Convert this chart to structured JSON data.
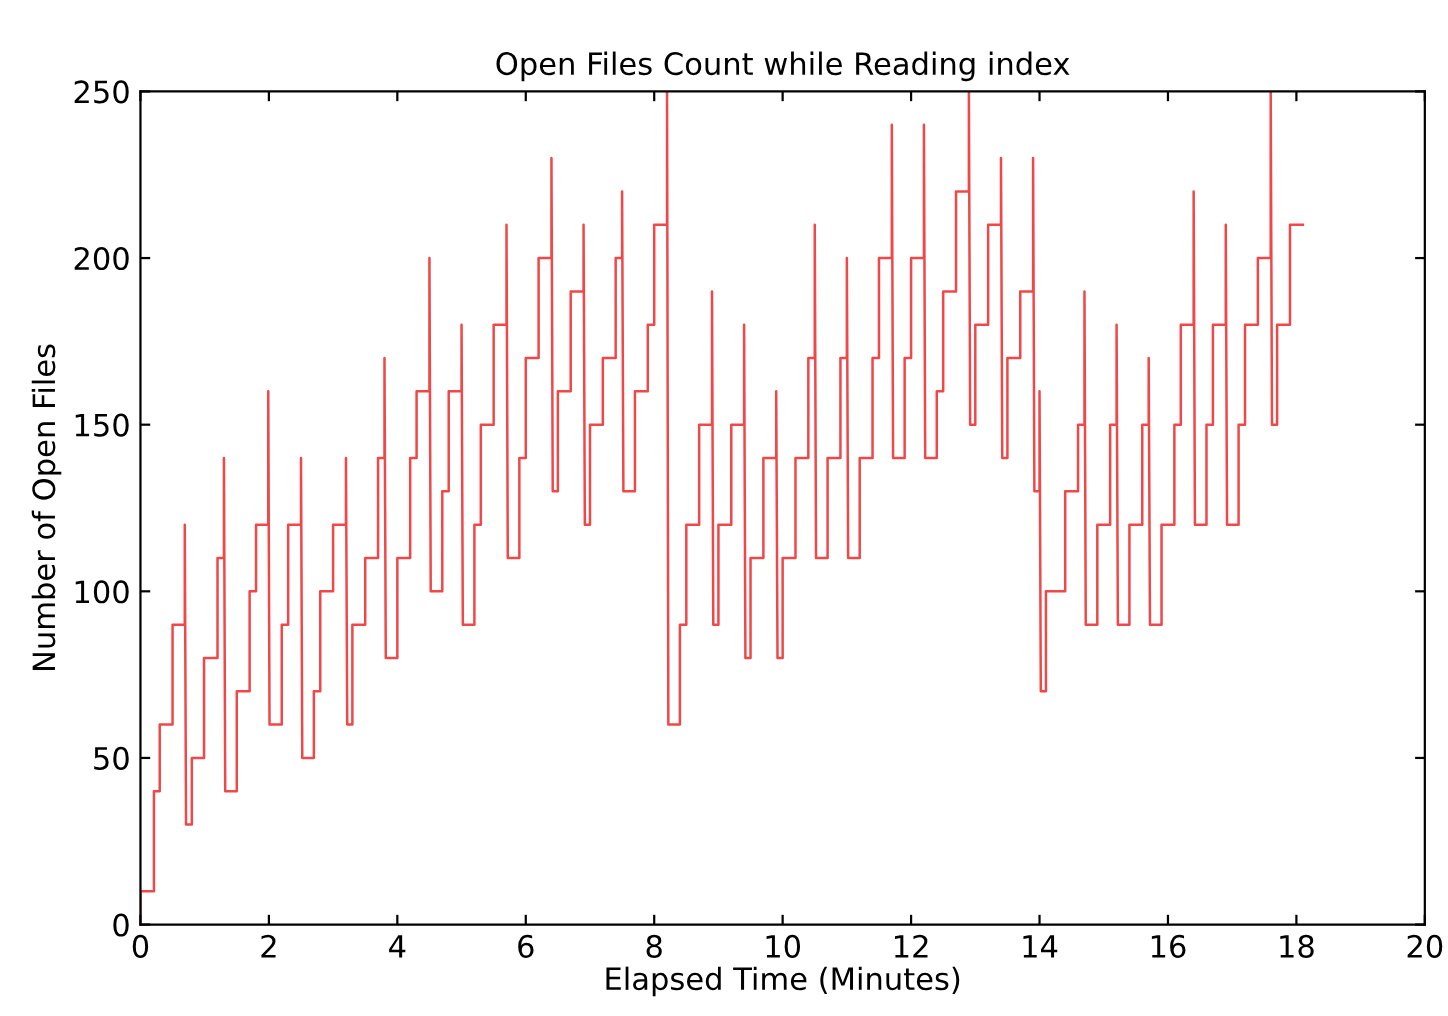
{
  "chart_data": {
    "type": "line",
    "title": "Open Files Count while Reading index",
    "xlabel": "Elapsed Time (Minutes)",
    "ylabel": "Number of Open Files",
    "xlim": [
      0,
      20
    ],
    "ylim": [
      0,
      250
    ],
    "xticks": [
      0,
      2,
      4,
      6,
      8,
      10,
      12,
      14,
      16,
      18,
      20
    ],
    "yticks": [
      0,
      50,
      100,
      150,
      200,
      250
    ],
    "x": [
      0,
      0,
      0.21,
      0.21,
      0.3,
      0.3,
      0.5,
      0.5,
      0.69,
      0.69,
      0.71,
      0.8,
      0.8,
      0.99,
      0.99,
      1.2,
      1.2,
      1.3,
      1.3,
      1.32,
      1.5,
      1.5,
      1.7,
      1.7,
      1.8,
      1.8,
      1.99,
      1.99,
      2.01,
      2.2,
      2.2,
      2.3,
      2.3,
      2.5,
      2.5,
      2.52,
      2.7,
      2.7,
      2.8,
      2.8,
      3.0,
      3.0,
      3.2,
      3.2,
      3.22,
      3.3,
      3.3,
      3.5,
      3.5,
      3.7,
      3.7,
      3.8,
      3.8,
      3.82,
      4.0,
      4.0,
      4.2,
      4.2,
      4.3,
      4.3,
      4.5,
      4.5,
      4.52,
      4.7,
      4.7,
      4.8,
      4.8,
      5.0,
      5.0,
      5.02,
      5.2,
      5.2,
      5.3,
      5.3,
      5.5,
      5.5,
      5.7,
      5.7,
      5.72,
      5.9,
      5.9,
      6.0,
      6.0,
      6.2,
      6.2,
      6.4,
      6.4,
      6.42,
      6.5,
      6.5,
      6.7,
      6.7,
      6.9,
      6.9,
      6.92,
      7.0,
      7.0,
      7.2,
      7.2,
      7.4,
      7.4,
      7.5,
      7.5,
      7.52,
      7.7,
      7.7,
      7.9,
      7.9,
      8.0,
      8.0,
      8.2,
      8.2,
      8.22,
      8.4,
      8.4,
      8.5,
      8.5,
      8.7,
      8.7,
      8.9,
      8.9,
      8.92,
      9.0,
      9.0,
      9.2,
      9.2,
      9.4,
      9.4,
      9.42,
      9.5,
      9.5,
      9.7,
      9.7,
      9.9,
      9.9,
      9.92,
      10.0,
      10.0,
      10.2,
      10.2,
      10.4,
      10.4,
      10.5,
      10.5,
      10.52,
      10.7,
      10.7,
      10.9,
      10.9,
      11.0,
      11.0,
      11.02,
      11.2,
      11.2,
      11.4,
      11.4,
      11.5,
      11.5,
      11.7,
      11.7,
      11.72,
      11.9,
      11.9,
      12.0,
      12.0,
      12.2,
      12.2,
      12.22,
      12.4,
      12.4,
      12.5,
      12.5,
      12.7,
      12.7,
      12.9,
      12.9,
      12.92,
      13.0,
      13.0,
      13.2,
      13.2,
      13.4,
      13.4,
      13.42,
      13.5,
      13.5,
      13.7,
      13.7,
      13.9,
      13.9,
      13.92,
      14.0,
      14.0,
      14.02,
      14.1,
      14.1,
      14.4,
      14.4,
      14.6,
      14.6,
      14.7,
      14.7,
      14.72,
      14.9,
      14.9,
      15.1,
      15.1,
      15.2,
      15.2,
      15.22,
      15.4,
      15.4,
      15.6,
      15.6,
      15.7,
      15.7,
      15.72,
      15.9,
      15.9,
      16.1,
      16.1,
      16.2,
      16.2,
      16.4,
      16.4,
      16.42,
      16.6,
      16.6,
      16.7,
      16.7,
      16.9,
      16.9,
      16.92,
      17.1,
      17.1,
      17.2,
      17.2,
      17.4,
      17.4,
      17.6,
      17.6,
      17.62,
      17.7,
      17.7,
      17.9,
      17.9,
      18.1
    ],
    "series": [
      {
        "color": "#f04848",
        "values": [
          0,
          10,
          10,
          40,
          40,
          60,
          60,
          90,
          90,
          120,
          30,
          30,
          50,
          50,
          80,
          80,
          110,
          110,
          140,
          40,
          40,
          70,
          70,
          100,
          100,
          120,
          120,
          160,
          60,
          60,
          90,
          90,
          120,
          120,
          140,
          50,
          50,
          70,
          70,
          100,
          100,
          120,
          120,
          140,
          60,
          60,
          90,
          90,
          110,
          110,
          140,
          140,
          170,
          80,
          80,
          110,
          110,
          140,
          140,
          160,
          160,
          200,
          100,
          100,
          130,
          130,
          160,
          160,
          180,
          90,
          90,
          120,
          120,
          150,
          150,
          180,
          180,
          210,
          110,
          110,
          140,
          140,
          170,
          170,
          200,
          200,
          230,
          130,
          130,
          160,
          160,
          190,
          190,
          210,
          120,
          120,
          150,
          150,
          170,
          170,
          200,
          200,
          220,
          130,
          130,
          160,
          160,
          180,
          180,
          210,
          210,
          250,
          60,
          60,
          90,
          90,
          120,
          120,
          150,
          150,
          190,
          90,
          90,
          120,
          120,
          150,
          150,
          180,
          80,
          80,
          110,
          110,
          140,
          140,
          160,
          80,
          80,
          110,
          110,
          140,
          140,
          170,
          170,
          210,
          110,
          110,
          140,
          140,
          170,
          170,
          200,
          110,
          110,
          140,
          140,
          170,
          170,
          200,
          200,
          240,
          140,
          140,
          170,
          170,
          200,
          200,
          240,
          140,
          140,
          160,
          160,
          190,
          190,
          220,
          220,
          250,
          150,
          150,
          180,
          180,
          210,
          210,
          230,
          140,
          140,
          170,
          170,
          190,
          190,
          230,
          130,
          130,
          160,
          70,
          70,
          100,
          100,
          130,
          130,
          150,
          150,
          190,
          90,
          90,
          120,
          120,
          150,
          150,
          180,
          90,
          90,
          120,
          120,
          150,
          150,
          170,
          90,
          90,
          120,
          120,
          150,
          150,
          180,
          180,
          220,
          120,
          120,
          150,
          150,
          180,
          180,
          210,
          120,
          120,
          150,
          150,
          180,
          180,
          200,
          200,
          250,
          150,
          150,
          180,
          180,
          210,
          210
        ]
      }
    ]
  }
}
